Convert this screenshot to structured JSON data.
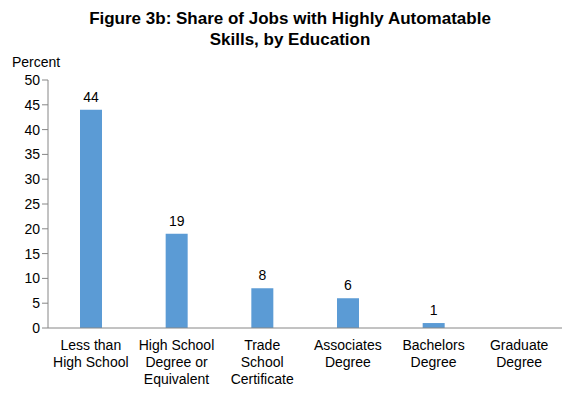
{
  "chart_data": {
    "type": "bar",
    "title": "Figure 3b: Share of Jobs with Highly Automatable Skills, by Education",
    "y_label": "Percent",
    "categories": [
      "Less than High School",
      "High School Degree or Equivalent",
      "Trade School Certificate",
      "Associates Degree",
      "Bachelors Degree",
      "Graduate Degree"
    ],
    "values": [
      44,
      19,
      8,
      6,
      1,
      0
    ],
    "color": "#5b9bd5",
    "ylim": [
      0,
      50
    ],
    "yticks": [
      0,
      5,
      10,
      15,
      20,
      25,
      30,
      35,
      40,
      45,
      50
    ],
    "grid": false,
    "data_labels": true
  }
}
